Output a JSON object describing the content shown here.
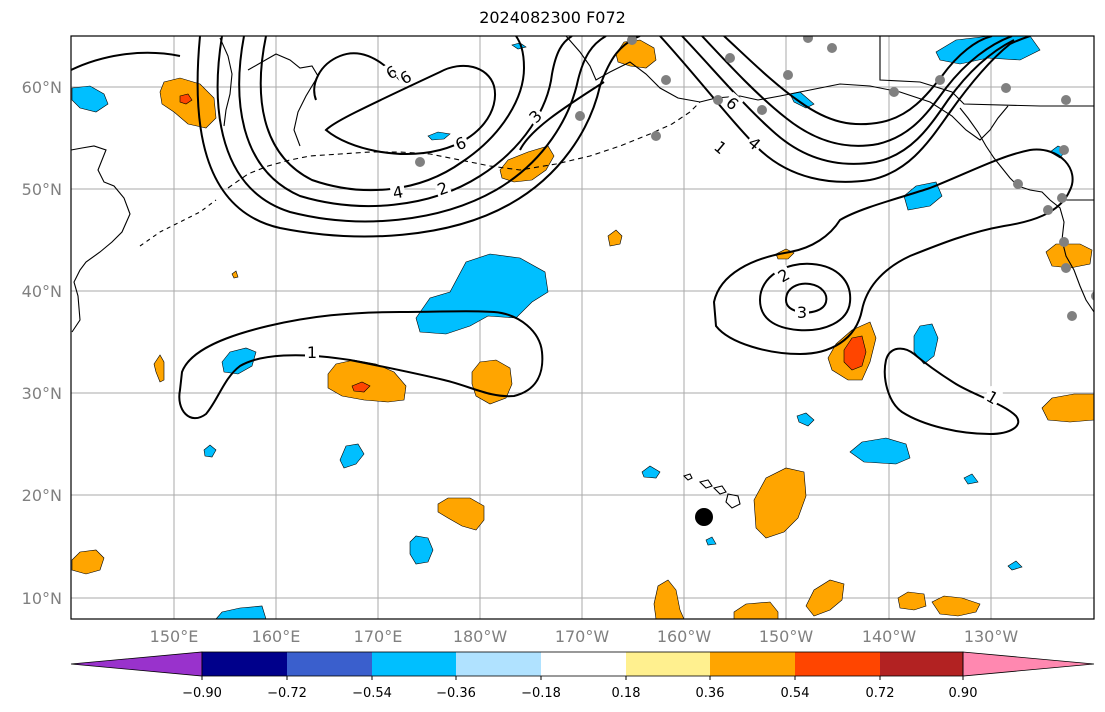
{
  "title": "2024082300 F072",
  "map": {
    "lon_labels": [
      "150°E",
      "160°E",
      "170°E",
      "180°W",
      "170°W",
      "160°W",
      "150°W",
      "140°W",
      "130°W"
    ],
    "lat_labels": [
      "60°N",
      "50°N",
      "40°N",
      "30°N",
      "20°N",
      "10°N"
    ],
    "contour_labels": [
      "6",
      "6",
      "6",
      "3",
      "4",
      "2",
      "1",
      "4",
      "6",
      "2",
      "3",
      "1",
      "1"
    ],
    "colors": {
      "land_outline": "#000000",
      "grid": "#aaaaaa",
      "station": "#808080"
    }
  },
  "colorbar": {
    "tick_labels": [
      "−0.90",
      "−0.72",
      "−0.54",
      "−0.36",
      "−0.18",
      "0.18",
      "0.36",
      "0.54",
      "0.72",
      "0.90"
    ],
    "colors": [
      "#9932cc",
      "#00008b",
      "#3a5fcd",
      "#00bfff",
      "#b0e2ff",
      "#ffffff",
      "#fff08f",
      "#ffa500",
      "#ff4500",
      "#b22222",
      "#ff88b0"
    ]
  }
}
